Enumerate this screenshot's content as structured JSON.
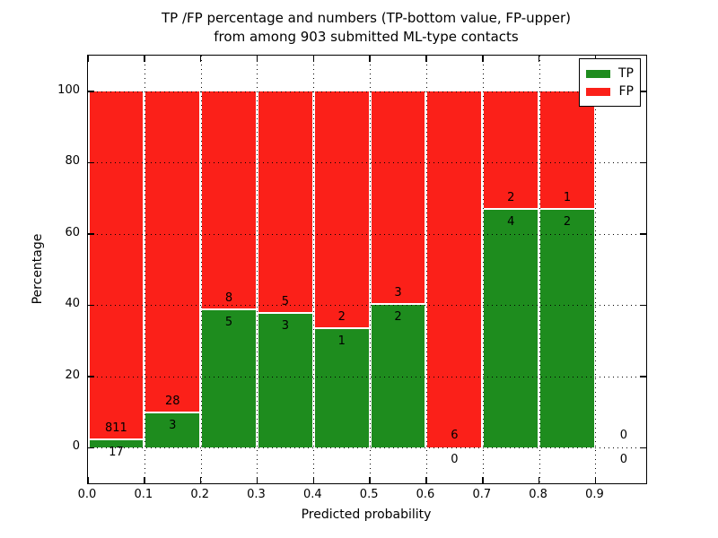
{
  "title": {
    "line1": "TP /FP percentage and numbers (TP-bottom value, FP-upper)",
    "line2": "from among 903 submitted ML-type contacts"
  },
  "axes": {
    "xlabel": "Predicted probability",
    "ylabel": "Percentage",
    "ytick_values": [
      0,
      20,
      40,
      60,
      80,
      100
    ],
    "ytick_labels": [
      "0",
      "20",
      "40",
      "60",
      "80",
      "100"
    ],
    "xtick_values": [
      0.0,
      0.1,
      0.2,
      0.3,
      0.4,
      0.5,
      0.6,
      0.7,
      0.8,
      0.9
    ],
    "xtick_labels": [
      "0.0",
      "0.1",
      "0.2",
      "0.3",
      "0.4",
      "0.5",
      "0.6",
      "0.7",
      "0.8",
      "0.9"
    ],
    "ylim": [
      -10,
      110
    ],
    "xlim": [
      0,
      0.99
    ],
    "grid_style": "dotted"
  },
  "legend": {
    "position": "upper-right",
    "entries": [
      {
        "label": "TP",
        "color": "#1e8c1e"
      },
      {
        "label": "FP",
        "color": "#fb2019"
      }
    ]
  },
  "colors": {
    "tp": "#1e8c1e",
    "fp": "#fb2019",
    "background": "#ffffff",
    "text": "#000000",
    "bar_edge": "#ffffff"
  },
  "chart_data": {
    "type": "bar",
    "stacked": true,
    "normalized_to_percent": true,
    "title": "TP /FP percentage and numbers (TP-bottom value, FP-upper) from among 903 submitted ML-type contacts",
    "xlabel": "Predicted probability",
    "ylabel": "Percentage",
    "total_contacts": 903,
    "bin_width": 0.1,
    "bin_starts": [
      0.0,
      0.1,
      0.2,
      0.3,
      0.4,
      0.5,
      0.6,
      0.7,
      0.8,
      0.9
    ],
    "bins": [
      "0.0-0.1",
      "0.1-0.2",
      "0.2-0.3",
      "0.3-0.4",
      "0.4-0.5",
      "0.5-0.6",
      "0.6-0.7",
      "0.7-0.8",
      "0.8-0.9",
      "0.9-1.0"
    ],
    "series": [
      {
        "name": "TP",
        "counts": [
          17,
          3,
          5,
          3,
          1,
          2,
          0,
          4,
          2,
          0
        ]
      },
      {
        "name": "FP",
        "counts": [
          811,
          28,
          8,
          5,
          2,
          3,
          6,
          2,
          1,
          0
        ]
      }
    ],
    "tp_percent_of_bin": [
      2.05,
      9.68,
      38.46,
      37.5,
      33.33,
      40.0,
      0.0,
      66.67,
      66.67,
      0.0
    ],
    "ylim": [
      -10,
      110
    ],
    "legend_position": "upper right",
    "grid": "on-dotted"
  }
}
